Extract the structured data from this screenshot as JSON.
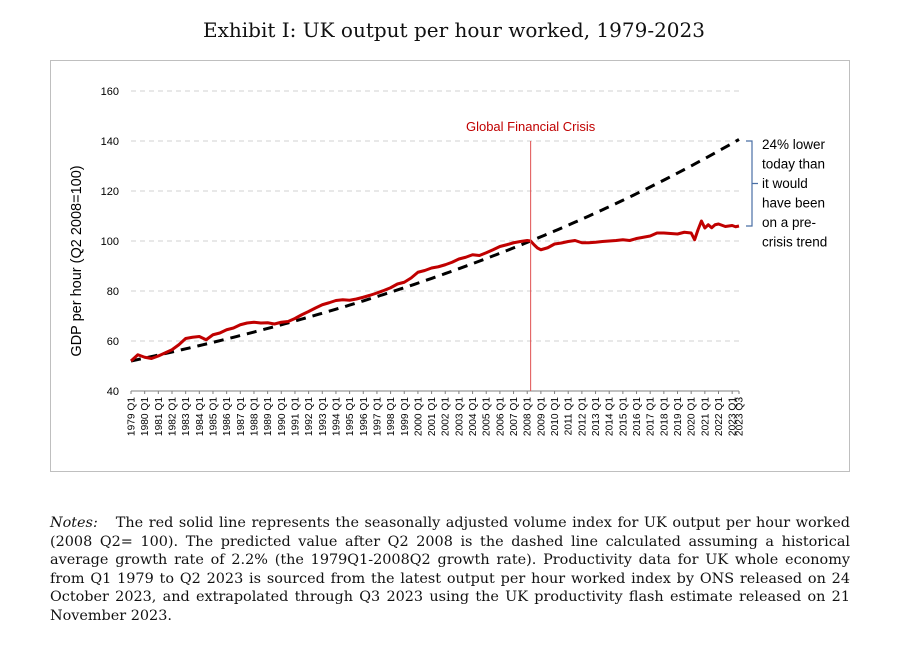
{
  "title": "Exhibit I: UK output per hour worked, 1979-2023",
  "notes": {
    "label": "Notes:",
    "text": "The red solid line represents the seasonally adjusted volume index for UK output per hour worked (2008 Q2= 100). The predicted value after Q2 2008 is the dashed line calculated assuming a historical average growth rate of 2.2% (the 1979Q1-2008Q2 growth rate). Productivity data for UK whole economy from Q1 1979 to Q2 2023 is sourced from the latest output per hour worked index by ONS released on 24 October 2023, and extrapolated through Q3 2023 using the UK productivity flash estimate released on 21 November 2023."
  },
  "colors": {
    "actual": "#c00000",
    "trend": "#000000",
    "gfc_line": "#e05050",
    "gfc_text": "#c00000",
    "bracket": "#4a6fa5",
    "grid": "#d0d0d0"
  },
  "chart_data": {
    "type": "line",
    "ylabel": "GDP per hour (Q2 2008=100)",
    "ylim": [
      40,
      160
    ],
    "yticks": [
      40,
      60,
      80,
      100,
      120,
      140,
      160
    ],
    "grid": "horizontal-dashed",
    "x_tick_labels": [
      "1979 Q1",
      "1980 Q1",
      "1981 Q1",
      "1982 Q1",
      "1983 Q1",
      "1984 Q1",
      "1985 Q1",
      "1986 Q1",
      "1987 Q1",
      "1988 Q1",
      "1989 Q1",
      "1990 Q1",
      "1991 Q1",
      "1992 Q1",
      "1993 Q1",
      "1994 Q1",
      "1995 Q1",
      "1996 Q1",
      "1997 Q1",
      "1998 Q1",
      "1999 Q1",
      "2000 Q1",
      "2001 Q1",
      "2002 Q1",
      "2003 Q1",
      "2004 Q1",
      "2005 Q1",
      "2006 Q1",
      "2007 Q1",
      "2008 Q1",
      "2009 Q1",
      "2010 Q1",
      "2011 Q1",
      "2012 Q1",
      "2013 Q1",
      "2014 Q1",
      "2015 Q1",
      "2016 Q1",
      "2017 Q1",
      "2018 Q1",
      "2019 Q1",
      "2020 Q1",
      "2021 Q1",
      "2022 Q1",
      "2023 Q1",
      "2023 Q3"
    ],
    "series": [
      {
        "style": "solid-red",
        "points": [
          [
            "1979 Q1",
            52
          ],
          [
            "1979 Q3",
            54.5
          ],
          [
            "1980 Q1",
            53.5
          ],
          [
            "1980 Q3",
            53
          ],
          [
            "1981 Q1",
            54
          ],
          [
            "1982 Q1",
            56.5
          ],
          [
            "1982 Q3",
            58.5
          ],
          [
            "1983 Q1",
            61
          ],
          [
            "1983 Q3",
            61.5
          ],
          [
            "1984 Q1",
            61.8
          ],
          [
            "1984 Q3",
            60.5
          ],
          [
            "1985 Q1",
            62.5
          ],
          [
            "1985 Q3",
            63.2
          ],
          [
            "1986 Q1",
            64.5
          ],
          [
            "1986 Q3",
            65.2
          ],
          [
            "1987 Q1",
            66.5
          ],
          [
            "1987 Q3",
            67.2
          ],
          [
            "1988 Q1",
            67.5
          ],
          [
            "1988 Q3",
            67.2
          ],
          [
            "1989 Q1",
            67.3
          ],
          [
            "1989 Q3",
            66.8
          ],
          [
            "1990 Q1",
            67.5
          ],
          [
            "1990 Q3",
            67.8
          ],
          [
            "1991 Q1",
            69
          ],
          [
            "1991 Q3",
            70.5
          ],
          [
            "1992 Q1",
            71.8
          ],
          [
            "1992 Q3",
            73.2
          ],
          [
            "1993 Q1",
            74.5
          ],
          [
            "1993 Q3",
            75.3
          ],
          [
            "1994 Q1",
            76.2
          ],
          [
            "1994 Q3",
            76.5
          ],
          [
            "1995 Q1",
            76.3
          ],
          [
            "1995 Q3",
            76.8
          ],
          [
            "1996 Q1",
            77.5
          ],
          [
            "1996 Q3",
            78.3
          ],
          [
            "1997 Q1",
            79.2
          ],
          [
            "1997 Q3",
            80.2
          ],
          [
            "1998 Q1",
            81.3
          ],
          [
            "1998 Q3",
            82.8
          ],
          [
            "1999 Q1",
            83.5
          ],
          [
            "1999 Q3",
            85.2
          ],
          [
            "2000 Q1",
            87.5
          ],
          [
            "2000 Q3",
            88.2
          ],
          [
            "2001 Q1",
            89.2
          ],
          [
            "2001 Q3",
            89.7
          ],
          [
            "2002 Q1",
            90.5
          ],
          [
            "2002 Q3",
            91.5
          ],
          [
            "2003 Q1",
            92.8
          ],
          [
            "2003 Q3",
            93.5
          ],
          [
            "2004 Q1",
            94.5
          ],
          [
            "2004 Q3",
            94.2
          ],
          [
            "2005 Q1",
            95.3
          ],
          [
            "2005 Q3",
            96.5
          ],
          [
            "2006 Q1",
            97.8
          ],
          [
            "2006 Q3",
            98.5
          ],
          [
            "2007 Q1",
            99.3
          ],
          [
            "2007 Q3",
            99.8
          ],
          [
            "2008 Q1",
            100.2
          ],
          [
            "2008 Q2",
            100
          ],
          [
            "2008 Q3",
            98.5
          ],
          [
            "2008 Q4",
            97.2
          ],
          [
            "2009 Q1",
            96.5
          ],
          [
            "2009 Q3",
            97.3
          ],
          [
            "2010 Q1",
            98.8
          ],
          [
            "2010 Q3",
            99.2
          ],
          [
            "2011 Q1",
            99.8
          ],
          [
            "2011 Q3",
            100.2
          ],
          [
            "2012 Q1",
            99.3
          ],
          [
            "2012 Q3",
            99.3
          ],
          [
            "2013 Q1",
            99.5
          ],
          [
            "2013 Q3",
            99.8
          ],
          [
            "2014 Q1",
            100
          ],
          [
            "2014 Q3",
            100.2
          ],
          [
            "2015 Q1",
            100.5
          ],
          [
            "2015 Q3",
            100.2
          ],
          [
            "2016 Q1",
            101
          ],
          [
            "2016 Q3",
            101.5
          ],
          [
            "2017 Q1",
            102
          ],
          [
            "2017 Q3",
            103.2
          ],
          [
            "2018 Q1",
            103.2
          ],
          [
            "2018 Q3",
            103
          ],
          [
            "2019 Q1",
            102.8
          ],
          [
            "2019 Q3",
            103.5
          ],
          [
            "2020 Q1",
            103.2
          ],
          [
            "2020 Q2",
            100.5
          ],
          [
            "2020 Q3",
            104.5
          ],
          [
            "2020 Q4",
            108
          ],
          [
            "2021 Q1",
            105.2
          ],
          [
            "2021 Q2",
            106.5
          ],
          [
            "2021 Q3",
            105.3
          ],
          [
            "2021 Q4",
            106.5
          ],
          [
            "2022 Q1",
            106.8
          ],
          [
            "2022 Q3",
            105.8
          ],
          [
            "2023 Q1",
            106.2
          ],
          [
            "2023 Q2",
            105.7
          ],
          [
            "2023 Q3",
            106
          ]
        ]
      },
      {
        "style": "dashed-black",
        "points": [
          [
            "1979 Q1",
            52
          ],
          [
            "2008 Q2",
            100
          ],
          [
            "2023 Q3",
            140
          ]
        ],
        "note": "constant 2.2% growth from Q1 1979"
      }
    ],
    "annotations": {
      "gfc_label": "Global Financial Crisis",
      "gfc_x": "2008 Q2",
      "bracket_range": [
        106,
        140
      ],
      "bracket_lines": [
        "24% lower",
        "today than",
        "it would",
        "have been",
        "on a pre-",
        "crisis trend"
      ]
    }
  }
}
